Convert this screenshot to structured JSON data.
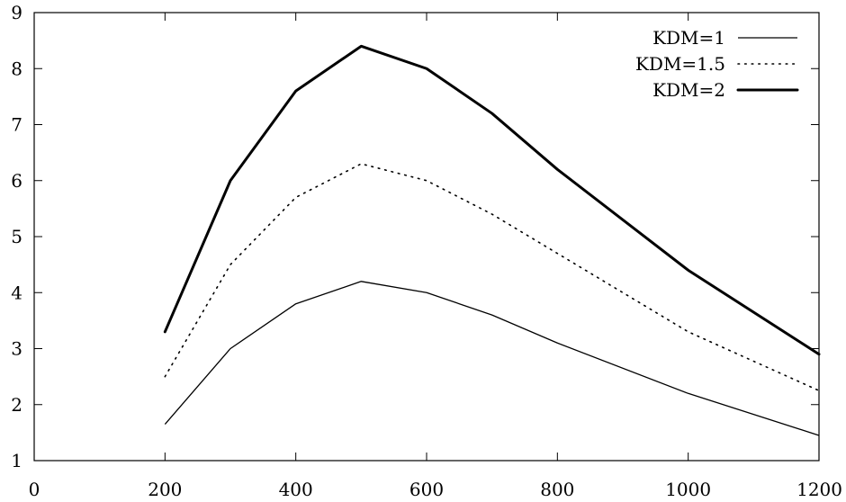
{
  "chart_data": {
    "type": "line",
    "title": "",
    "xlabel": "",
    "ylabel": "",
    "xlim": [
      0,
      1200
    ],
    "ylim": [
      1,
      9
    ],
    "xticks": [
      0,
      200,
      400,
      600,
      800,
      1000,
      1200
    ],
    "yticks": [
      1,
      2,
      3,
      4,
      5,
      6,
      7,
      8,
      9
    ],
    "grid": false,
    "legend_position": "top-right",
    "x": [
      200,
      300,
      400,
      500,
      600,
      700,
      800,
      1000,
      1200
    ],
    "series": [
      {
        "name": "KDM=1",
        "style": "solid",
        "values": [
          1.65,
          3.0,
          3.8,
          4.2,
          4.0,
          3.6,
          3.1,
          2.2,
          1.45
        ]
      },
      {
        "name": "KDM=1.5",
        "style": "dotted",
        "values": [
          2.5,
          4.5,
          5.7,
          6.3,
          6.0,
          5.4,
          4.7,
          3.3,
          2.25
        ]
      },
      {
        "name": "KDM=2",
        "style": "thick",
        "values": [
          3.3,
          6.0,
          7.6,
          8.4,
          8.0,
          7.2,
          6.2,
          4.4,
          2.9
        ]
      }
    ]
  }
}
